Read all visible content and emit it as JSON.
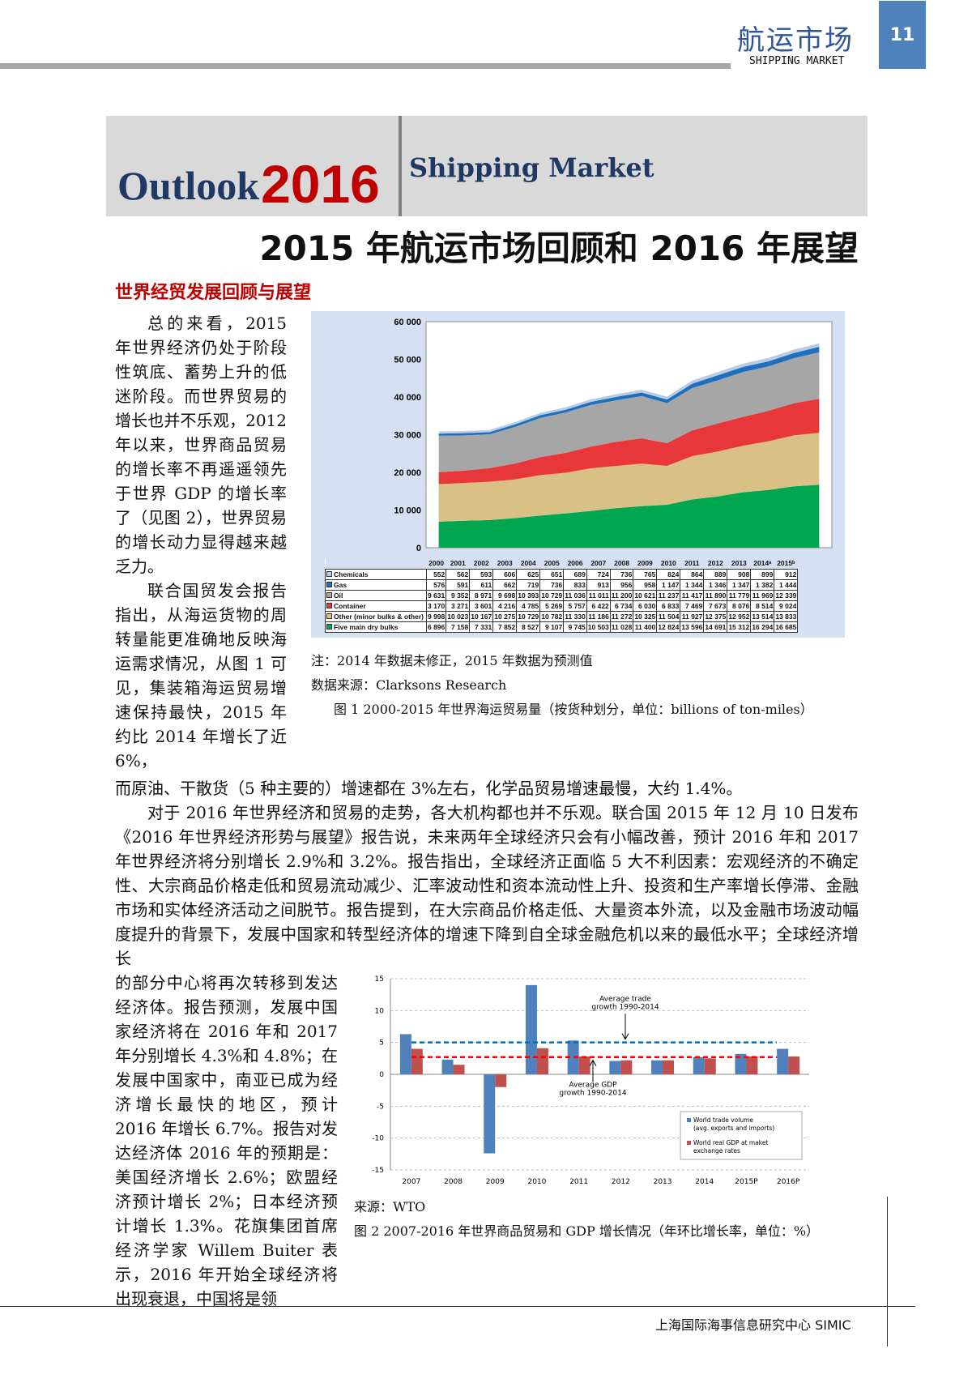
{
  "header": {
    "section_cn": "航运市场",
    "section_en": "SHIPPING MARKET",
    "page_number": "11"
  },
  "banner": {
    "outlook": "Outlook",
    "year": "2016",
    "subtitle": "Shipping Market"
  },
  "title": "2015 年航运市场回顾和 2016 年展望",
  "section_heading": "世界经贸发展回顾与展望",
  "col1": [
    "总的来看，2015 年世界经济仍处于阶段性筑底、蓄势上升的低迷阶段。而世界贸易的增长也并不乐观，2012 年以来，世界商品贸易的增长率不再遥遥领先于世界 GDP 的增长率了（见图 2），世界贸易的增长动力显得越来越乏力。",
    "联合国贸发会报告指出，从海运货物的周转量能更准确地反映海运需求情况，从图 1 可见，集装箱海运贸易增速保持最快，2015 年约比 2014 年增长了近 6%，"
  ],
  "full": [
    "而原油、干散货（5 种主要的）增速都在 3%左右，化学品贸易增速最慢，大约 1.4%。",
    "对于 2016 年世界经济和贸易的走势，各大机构都也并不乐观。联合国 2015 年 12 月 10 日发布《2016 年世界经济形势与展望》报告说，未来两年全球经济只会有小幅改善，预计 2016 年和 2017 年世界经济将分别增长 2.9%和 3.2%。报告指出，全球经济正面临 5 大不利因素：宏观经济的不确定性、大宗商品价格走低和贸易流动减少、汇率波动性和资本流动性上升、投资和生产率增长停滞、金融市场和实体经济活动之间脱节。报告提到，在大宗商品价格走低、大量资本外流，以及金融市场波动幅度提升的背景下，发展中国家和转型经济体的增速下降到自全球金融危机以来的最低水平；全球经济增长"
  ],
  "col2": "的部分中心将再次转移到发达经济体。报告预测，发展中国家经济将在 2016 年和 2017 年分别增长 4.3%和 4.8%；在发展中国家中，南亚已成为经济增长最快的地区，预计 2016 年增长 6.7%。报告对发达经济体 2016 年的预期是：美国经济增长 2.6%；欧盟经济预计增长 2%；日本经济预计增长 1.3%。花旗集团首席经济学家 Willem Buiter 表示，2016 年开始全球经济将出现衰退，中国将是领",
  "fig1": {
    "note": "注：2014 年数据未修正，2015 年数据为预测值",
    "source": "数据来源：Clarksons Research",
    "caption": "图 1 2000-2015 年世界海运贸易量（按货种划分，单位：billions of ton-miles）"
  },
  "fig2": {
    "source": "来源：WTO",
    "caption": "图 2 2007-2016 年世界商品贸易和 GDP 增长情况（年环比增长率，单位：%）"
  },
  "footer": "上海国际海事信息研究中心 SIMIC",
  "chart_data": [
    {
      "type": "area",
      "stacked": true,
      "categories": [
        "2000",
        "2001",
        "2002",
        "2003",
        "2004",
        "2005",
        "2006",
        "2007",
        "2008",
        "2009",
        "2010",
        "2011",
        "2012",
        "2013",
        "2014ᵃ",
        "2015ᵇ"
      ],
      "ylim": [
        0,
        60000
      ],
      "yticks": [
        "0",
        "10 000",
        "20 000",
        "30 000",
        "40 000",
        "50 000",
        "60 000"
      ],
      "series": [
        {
          "name": "Five main dry bulks",
          "color": "#00a650",
          "values": [
            "6 896",
            "7 158",
            "7 331",
            "7 852",
            "8 527",
            "9 107",
            "9 745",
            "10 503",
            "11 028",
            "11 400",
            "12 824",
            "13 596",
            "14 691",
            "15 312",
            "16 294",
            "16 685"
          ]
        },
        {
          "name": "Other (minor bulks & other)",
          "color": "#d9c085",
          "values": [
            "9 998",
            "10 023",
            "10 167",
            "10 275",
            "10 729",
            "10 782",
            "11 330",
            "11 186",
            "11 272",
            "10 325",
            "11 504",
            "11 927",
            "12 375",
            "12 952",
            "13 514",
            "13 833"
          ]
        },
        {
          "name": "Container",
          "color": "#e8373a",
          "values": [
            "3 170",
            "3 271",
            "3 601",
            "4 216",
            "4 785",
            "5 269",
            "5 757",
            "6 422",
            "6 734",
            "6 030",
            "6 833",
            "7 469",
            "7 673",
            "8 076",
            "8 514",
            "9 024"
          ]
        },
        {
          "name": "Oil",
          "color": "#a6a6a6",
          "values": [
            "9 631",
            "9 352",
            "8 971",
            "9 698",
            "10 393",
            "10 729",
            "11 036",
            "11 011",
            "11 200",
            "10 621",
            "11 237",
            "11 417",
            "11 890",
            "11 779",
            "11 969",
            "12 339"
          ]
        },
        {
          "name": "Gas",
          "color": "#1f6fbf",
          "values": [
            "576",
            "591",
            "611",
            "662",
            "719",
            "736",
            "833",
            "913",
            "956",
            "958",
            "1 147",
            "1 344",
            "1 346",
            "1 347",
            "1 382",
            "1 444"
          ]
        },
        {
          "name": "Chemicals",
          "color": "#b8cce4",
          "values": [
            "552",
            "562",
            "593",
            "606",
            "625",
            "651",
            "689",
            "724",
            "736",
            "765",
            "824",
            "864",
            "889",
            "908",
            "899",
            "912"
          ]
        }
      ],
      "table_order": [
        "Chemicals",
        "Gas",
        "Oil",
        "Container",
        "Other (minor bulks & other)",
        "Five main dry bulks"
      ]
    },
    {
      "type": "bar",
      "categories": [
        "2007",
        "2008",
        "2009",
        "2010",
        "2011",
        "2012",
        "2013",
        "2014",
        "2015P",
        "2016P"
      ],
      "ylim": [
        -15,
        15
      ],
      "yticks": [
        "15",
        "10",
        "5",
        "0",
        "-5",
        "-10",
        "-15"
      ],
      "grid": true,
      "series": [
        {
          "name": "World trade volume (avg. exports and imports)",
          "color": "#4f81bd",
          "values": [
            6.3,
            2.3,
            -12.4,
            14.0,
            5.3,
            2.1,
            2.2,
            2.7,
            3.2,
            4.0
          ]
        },
        {
          "name": "World real GDP at maket exchange rates",
          "color": "#c0504d",
          "values": [
            4.0,
            1.5,
            -2.0,
            4.1,
            2.8,
            2.2,
            2.2,
            2.5,
            2.8,
            2.8
          ]
        }
      ],
      "reference_lines": [
        {
          "label": "Average trade growth 1990-2014",
          "value": 5.0,
          "color": "#0070c0"
        },
        {
          "label": "Average GDP growth 1990-2014",
          "value": 2.7,
          "color": "#ff0000"
        }
      ],
      "legend": "bottom-right"
    }
  ]
}
